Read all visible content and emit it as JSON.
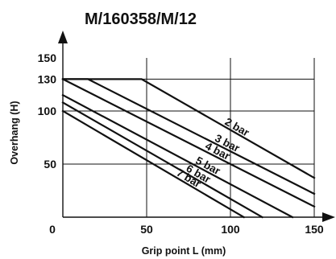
{
  "chart_data": {
    "type": "line",
    "title": "M/160358/M/12",
    "xlabel": "Grip point L (mm)",
    "ylabel": "Overhang (H)",
    "xlim": [
      0,
      150
    ],
    "ylim": [
      0,
      150
    ],
    "x_ticks": [
      "0",
      "50",
      "100",
      "150"
    ],
    "y_ticks": [
      "50",
      "100",
      "130",
      "150"
    ],
    "x_tick_values": [
      0,
      50,
      100,
      150
    ],
    "y_tick_values": [
      50,
      100,
      130,
      150
    ],
    "grid": true,
    "series": [
      {
        "name": "2 bar",
        "points": [
          [
            0,
            130
          ],
          [
            47,
            130
          ],
          [
            150,
            37
          ]
        ]
      },
      {
        "name": "3 bar",
        "points": [
          [
            0,
            130
          ],
          [
            15,
            130
          ],
          [
            150,
            22
          ]
        ]
      },
      {
        "name": "4 bar",
        "points": [
          [
            0,
            130
          ],
          [
            150,
            10
          ]
        ]
      },
      {
        "name": "5 bar",
        "points": [
          [
            0,
            115
          ],
          [
            137,
            0
          ]
        ]
      },
      {
        "name": "6 bar",
        "points": [
          [
            0,
            108
          ],
          [
            119,
            0
          ]
        ]
      },
      {
        "name": "7 bar",
        "points": [
          [
            0,
            100
          ],
          [
            108,
            0
          ]
        ]
      }
    ]
  }
}
